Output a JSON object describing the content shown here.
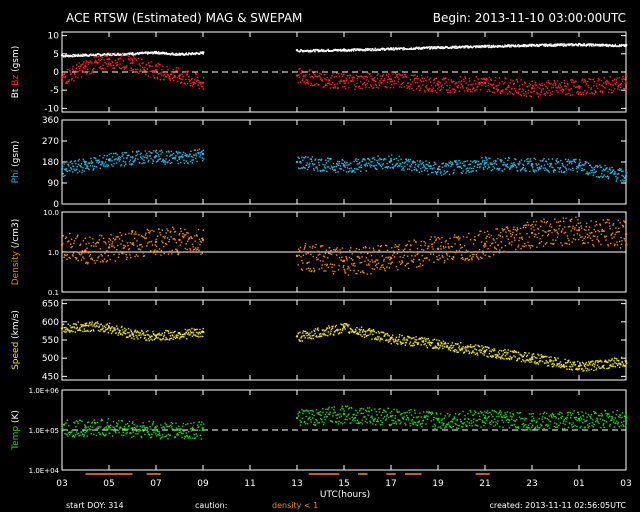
{
  "header": {
    "title": "ACE RTSW (Estimated) MAG & SWEPAM",
    "begin": "Begin: 2013-11-10 03:00:00UTC"
  },
  "footer": {
    "start_doy": "start DOY: 314",
    "caution": "caution:",
    "density_note": "density < 1",
    "created": "created: 2013-11-11 02:56:05UTC"
  },
  "colors": {
    "bt": "#ffffff",
    "bz": "#ff2020",
    "phi": "#2ab7e0",
    "density": "#f08a1c",
    "speed": "#e8e030",
    "temp": "#22d022",
    "frame": "#ffffff"
  },
  "chart_data": {
    "type": "scatter",
    "xlabel": "UTC(hours)",
    "x_ticks": [
      "03",
      "05",
      "07",
      "09",
      "11",
      "13",
      "15",
      "17",
      "19",
      "21",
      "23",
      "01",
      "03"
    ],
    "x_range_hours": [
      3,
      27
    ],
    "data_gap_hours": [
      9.0,
      13.0
    ],
    "panels": [
      {
        "id": "mag",
        "ylabel_parts": [
          "Bt",
          "Bz",
          "(gsm)"
        ],
        "y_ticks": [
          "10",
          "5",
          "0",
          "-5",
          "-10"
        ],
        "ylim": [
          -11,
          11
        ],
        "reference_line": 0,
        "series": [
          {
            "key": "Bt",
            "x": [
              3,
              4,
              5,
              6,
              7,
              8,
              9,
              13,
              15,
              17,
              19,
              21,
              23,
              25,
              27
            ],
            "values": [
              4.6,
              4.8,
              5.0,
              5.2,
              5.5,
              5.0,
              5.4,
              6.0,
              6.2,
              6.5,
              6.9,
              7.2,
              7.5,
              7.7,
              7.4
            ]
          },
          {
            "key": "Bz",
            "x": [
              3,
              4,
              5,
              6,
              7,
              8,
              9,
              13,
              15,
              17,
              19,
              21,
              23,
              25,
              27
            ],
            "values": [
              -1.5,
              1.5,
              3.5,
              2.5,
              0.5,
              -1,
              -3,
              -1,
              -2.5,
              -2,
              -3.5,
              -3,
              -4.5,
              -4,
              -3
            ]
          }
        ]
      },
      {
        "id": "phi",
        "ylabel_parts": [
          "Phi",
          "(gsm)"
        ],
        "y_ticks": [
          "360",
          "270",
          "180",
          "90",
          "0"
        ],
        "ylim": [
          0,
          360
        ],
        "series": [
          {
            "key": "Phi",
            "x": [
              3,
              4,
              5,
              6,
              7,
              8,
              9,
              13,
              15,
              17,
              19,
              21,
              23,
              25,
              27
            ],
            "values": [
              150,
              170,
              190,
              200,
              205,
              200,
              215,
              180,
              165,
              185,
              150,
              175,
              170,
              165,
              120
            ]
          }
        ]
      },
      {
        "id": "density",
        "ylabel_parts": [
          "Density",
          "(/cm3)"
        ],
        "y_ticks": [
          "10.0",
          "1.0",
          "0.1"
        ],
        "ylim": [
          0.1,
          10
        ],
        "log": true,
        "reference_line": 1.0,
        "series": [
          {
            "key": "Density",
            "x": [
              3,
              4,
              5,
              6,
              7,
              8,
              9,
              13,
              15,
              17,
              19,
              21,
              23,
              25,
              27
            ],
            "values": [
              1.5,
              1.1,
              1.3,
              1.6,
              1.8,
              2.0,
              2.0,
              0.8,
              0.6,
              0.7,
              1.2,
              1.6,
              3.0,
              3.5,
              2.8
            ]
          }
        ]
      },
      {
        "id": "speed",
        "ylabel_parts": [
          "Speed",
          "(km/s)"
        ],
        "y_ticks": [
          "650",
          "600",
          "550",
          "500",
          "450"
        ],
        "ylim": [
          440,
          660
        ],
        "series": [
          {
            "key": "Speed",
            "x": [
              3,
              4,
              5,
              6,
              7,
              8,
              9,
              13,
              15,
              17,
              19,
              21,
              23,
              25,
              27
            ],
            "values": [
              582,
              590,
              585,
              568,
              562,
              568,
              572,
              560,
              585,
              555,
              540,
              520,
              502,
              478,
              492
            ]
          }
        ]
      },
      {
        "id": "temp",
        "ylabel_parts": [
          "Temp",
          "(K)"
        ],
        "y_ticks": [
          "1.0E+06",
          "1.0E+05",
          "1.0E+04"
        ],
        "ylim": [
          10000,
          1000000
        ],
        "log": true,
        "reference_line": 100000,
        "series": [
          {
            "key": "Temp",
            "x": [
              3,
              4,
              5,
              6,
              7,
              8,
              9,
              13,
              15,
              17,
              19,
              21,
              23,
              25,
              27
            ],
            "values": [
              110000,
              115000,
              120000,
              110000,
              100000,
              100000,
              100000,
              200000,
              250000,
              220000,
              180000,
              200000,
              170000,
              190000,
              200000
            ]
          }
        ]
      }
    ]
  }
}
